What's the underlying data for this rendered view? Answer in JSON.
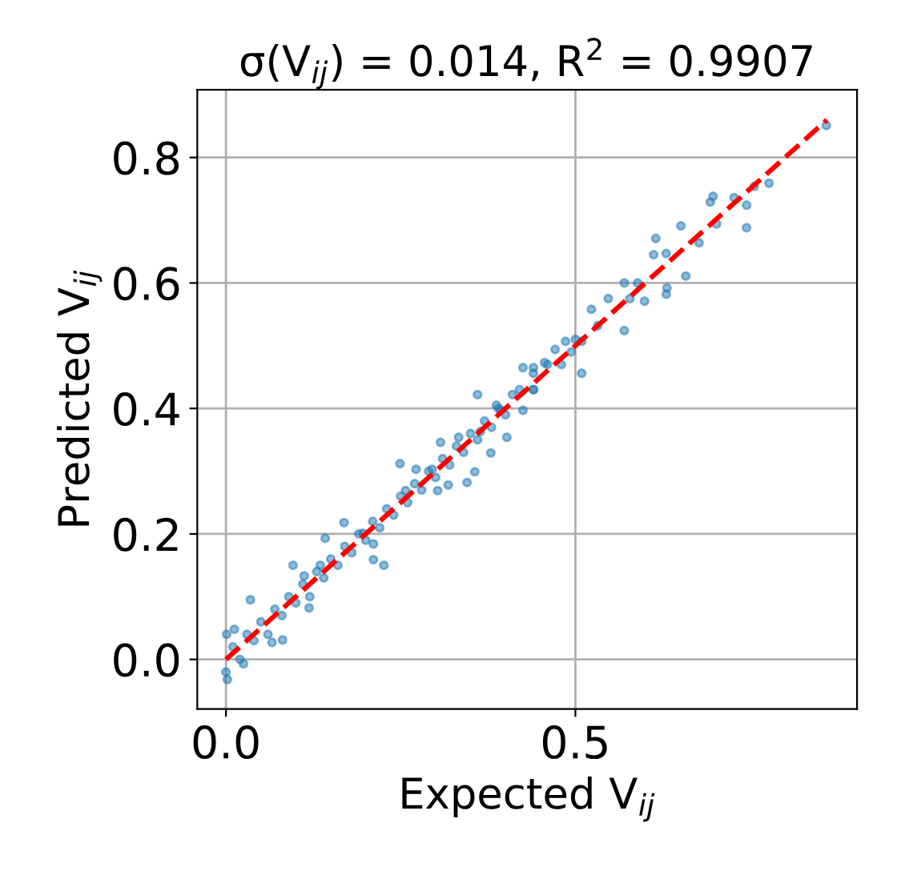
{
  "chart_data": {
    "type": "scatter",
    "title": "σ(V$_{ij}$) = 0.014, R$^{2}$ = 0.9907",
    "xlabel": "Expected V$_{ij}$",
    "ylabel": "Predicted V$_{ij}$",
    "xlim": [
      -0.041,
      0.903
    ],
    "ylim": [
      -0.079,
      0.908
    ],
    "xticks": [
      {
        "value": 0,
        "label": "0.0"
      },
      {
        "value": 0.5,
        "label": "0.5"
      }
    ],
    "yticks": [
      {
        "value": 0,
        "label": "0.0"
      },
      {
        "value": 0.2,
        "label": "0.2"
      },
      {
        "value": 0.4,
        "label": "0.4"
      },
      {
        "value": 0.6,
        "label": "0.6"
      },
      {
        "value": 0.8,
        "label": "0.8"
      }
    ],
    "grid": true,
    "series": [
      {
        "color": "#1f77b4",
        "marker": "circle",
        "x": [
          0.859,
          0.777,
          0.756,
          0.745,
          0.745,
          0.727,
          0.697,
          0.693,
          0.702,
          0.677,
          0.658,
          0.651,
          0.63,
          0.615,
          0.612,
          0.631,
          0.63,
          0.599,
          0.589,
          0.57,
          0.578,
          0.57,
          0.547,
          0.523,
          0.532,
          0.509,
          0.509,
          0.494,
          0.471,
          0.44,
          0.425,
          0.44,
          0.425,
          0.393,
          0.36,
          0.402,
          0.379,
          0.356,
          0.345,
          0.333,
          0.307,
          0.295,
          0.272,
          0.249,
          0.226,
          0.211,
          0.169,
          0.142,
          0.135,
          0.119,
          0.081,
          0.066,
          0.035,
          0.025,
          0.002,
          0.0,
          0.001,
          0.012,
          0.096,
          0.112,
          0.196,
          0.211,
          0.257,
          0.303,
          0.318,
          0.364,
          0.387,
          0.41,
          0.44,
          0.456,
          0.486,
          0.01,
          0.02,
          0.03,
          0.04,
          0.05,
          0.06,
          0.07,
          0.08,
          0.09,
          0.1,
          0.11,
          0.12,
          0.13,
          0.14,
          0.15,
          0.16,
          0.17,
          0.18,
          0.19,
          0.2,
          0.21,
          0.22,
          0.23,
          0.24,
          0.25,
          0.26,
          0.27,
          0.28,
          0.29,
          0.3,
          0.31,
          0.32,
          0.33,
          0.34,
          0.35,
          0.36,
          0.37,
          0.38,
          0.39,
          0.4,
          0.42,
          0.44,
          0.46,
          0.48,
          0.5
        ],
        "values": [
          0.851,
          0.759,
          0.754,
          0.724,
          0.688,
          0.736,
          0.738,
          0.729,
          0.694,
          0.664,
          0.611,
          0.691,
          0.647,
          0.671,
          0.645,
          0.592,
          0.582,
          0.571,
          0.6,
          0.6,
          0.575,
          0.524,
          0.575,
          0.558,
          0.532,
          0.456,
          0.507,
          0.49,
          0.494,
          0.465,
          0.465,
          0.43,
          0.397,
          0.397,
          0.422,
          0.354,
          0.329,
          0.299,
          0.282,
          0.354,
          0.346,
          0.303,
          0.303,
          0.312,
          0.15,
          0.159,
          0.218,
          0.193,
          0.15,
          0.082,
          0.031,
          0.027,
          0.095,
          -0.007,
          -0.032,
          -0.02,
          0.04,
          0.048,
          0.15,
          0.133,
          0.201,
          0.184,
          0.269,
          0.269,
          0.278,
          0.363,
          0.405,
          0.422,
          0.456,
          0.473,
          0.507,
          0.02,
          0.0,
          0.04,
          0.03,
          0.06,
          0.04,
          0.08,
          0.07,
          0.1,
          0.09,
          0.12,
          0.1,
          0.14,
          0.13,
          0.16,
          0.15,
          0.18,
          0.17,
          0.2,
          0.19,
          0.22,
          0.21,
          0.24,
          0.23,
          0.26,
          0.25,
          0.28,
          0.27,
          0.3,
          0.29,
          0.32,
          0.31,
          0.34,
          0.33,
          0.36,
          0.35,
          0.38,
          0.37,
          0.4,
          0.39,
          0.43,
          0.43,
          0.47,
          0.47,
          0.51
        ]
      },
      {
        "type": "line",
        "color": "#ff0000",
        "line_style": "dashed",
        "marker": "none",
        "x": [
          0,
          0.86
        ],
        "values": [
          0,
          0.86
        ]
      }
    ]
  }
}
